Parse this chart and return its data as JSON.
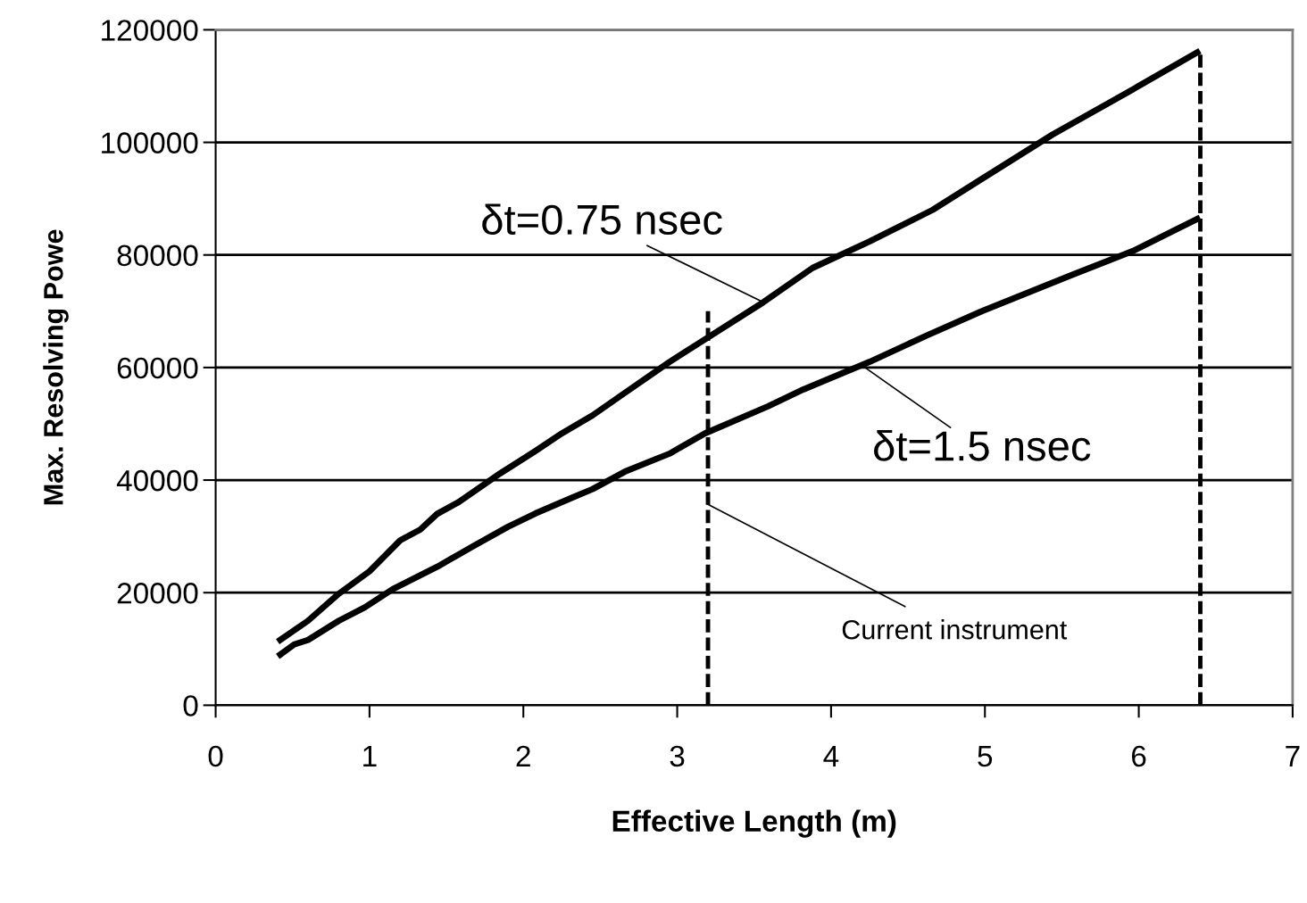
{
  "chart_data": {
    "type": "line",
    "xlabel": "Effective Length (m)",
    "ylabel": "Max. Resolving Powe",
    "xlim": [
      0,
      7
    ],
    "xticks": [
      0,
      1,
      2,
      3,
      4,
      5,
      6,
      7
    ],
    "ylim": [
      0,
      120000
    ],
    "yticks": [
      0,
      20000,
      40000,
      60000,
      80000,
      100000,
      120000
    ],
    "grid": "y",
    "legend": false,
    "marker": "none",
    "line_style": "solid",
    "series": [
      {
        "color": "#000000",
        "x": [
          0.42,
          0.6,
          0.8,
          1.0,
          1.2,
          1.33,
          1.44,
          1.58,
          1.85,
          2.08,
          2.25,
          2.45,
          2.66,
          2.95,
          3.18,
          3.56,
          3.88,
          4.25,
          4.66,
          4.98,
          5.44,
          5.91,
          6.38
        ],
        "values": [
          11600,
          15000,
          19800,
          23800,
          29300,
          31200,
          34000,
          36100,
          41200,
          45200,
          48300,
          51500,
          55500,
          61000,
          65000,
          71600,
          77700,
          82400,
          88000,
          93500,
          101400,
          108600,
          116000
        ]
      },
      {
        "color": "#000000",
        "x": [
          0.42,
          0.51,
          0.6,
          0.8,
          0.97,
          1.15,
          1.44,
          1.67,
          1.9,
          2.08,
          2.31,
          2.45,
          2.66,
          2.95,
          3.18,
          3.59,
          3.82,
          4.25,
          4.63,
          4.98,
          5.56,
          5.97,
          6.38
        ],
        "values": [
          9000,
          10800,
          11600,
          15000,
          17400,
          20600,
          24600,
          28200,
          31700,
          34100,
          36800,
          38400,
          41500,
          44700,
          48300,
          53100,
          56100,
          61000,
          65800,
          70000,
          76400,
          80800,
          86400
        ]
      },
      {
        "type": "line",
        "line_style": "dashed",
        "color": "#000000",
        "x": [
          3.2,
          3.2
        ],
        "values": [
          0,
          70000
        ]
      },
      {
        "type": "line",
        "line_style": "dashed",
        "color": "#000000",
        "x": [
          6.4,
          6.4
        ],
        "values": [
          0,
          116000
        ]
      }
    ],
    "annotations": [
      {
        "text": "δt=0.75 nsec",
        "x": 3.56,
        "y": 71600
      },
      {
        "text": "δt=1.5 nsec",
        "x": 4.2,
        "y": 60400
      },
      {
        "text": "Current instrument",
        "x": 3.2,
        "y": 35700
      }
    ]
  }
}
